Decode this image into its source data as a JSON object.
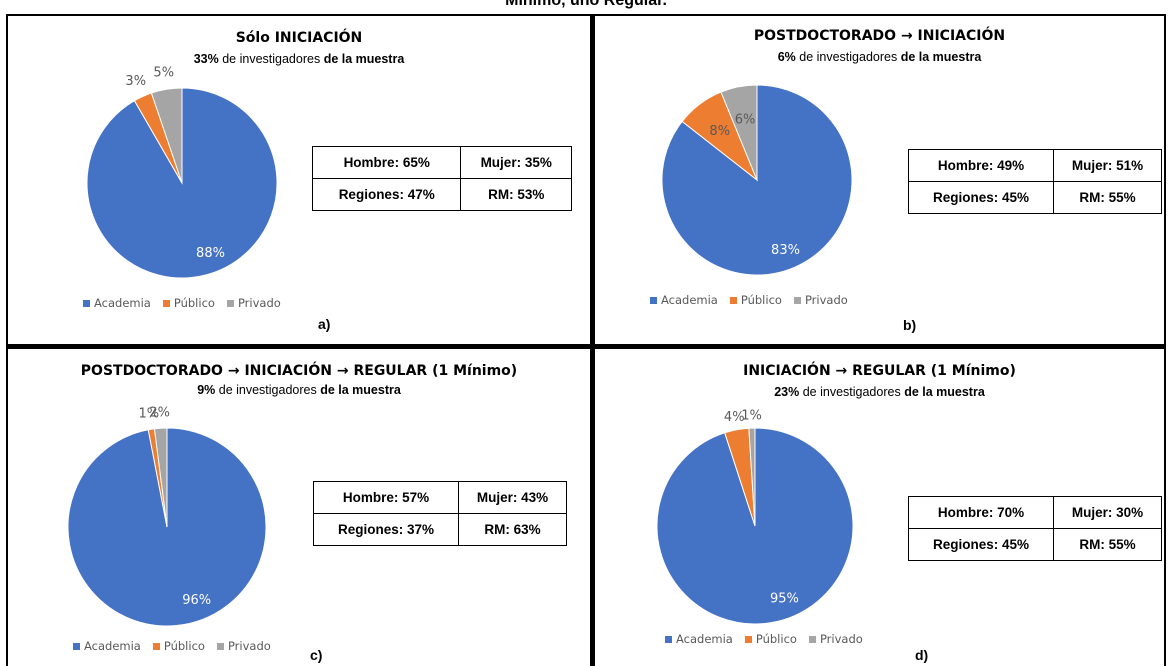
{
  "figure_title": "Mínimo, uno Regular.",
  "legend_labels": [
    "Academia",
    "Público",
    "Privado"
  ],
  "colors": {
    "Academia": "#4472C4",
    "Público": "#ED7D31",
    "Privado": "#A5A5A5"
  },
  "chart_data": [
    {
      "type": "pie",
      "title": "Sólo INICIACIÓN",
      "subtitle_pct": "33%",
      "subtitle_mid": " de investigadores ",
      "subtitle_end": "de la muestra",
      "slices": [
        {
          "name": "Academia",
          "value": 88,
          "label": "88%"
        },
        {
          "name": "Público",
          "value": 3,
          "label": "3%"
        },
        {
          "name": "Privado",
          "value": 5,
          "label": "5%"
        }
      ],
      "legend_position": "bottom",
      "stats": {
        "hombre": "Hombre: 65%",
        "mujer": "Mujer: 35%",
        "regiones": "Regiones: 47%",
        "rm": "RM: 53%"
      },
      "letter": "a)"
    },
    {
      "type": "pie",
      "title": "POSTDOCTORADO → INICIACIÓN",
      "subtitle_pct": "6%",
      "subtitle_mid": " de investigadores ",
      "subtitle_end": "de la muestra",
      "slices": [
        {
          "name": "Academia",
          "value": 83,
          "label": "83%"
        },
        {
          "name": "Público",
          "value": 8,
          "label": "8%"
        },
        {
          "name": "Privado",
          "value": 6,
          "label": "6%"
        }
      ],
      "legend_position": "bottom",
      "stats": {
        "hombre": "Hombre: 49%",
        "mujer": "Mujer: 51%",
        "regiones": "Regiones: 45%",
        "rm": "RM: 55%"
      },
      "letter": "b)"
    },
    {
      "type": "pie",
      "title": "POSTDOCTORADO → INICIACIÓN → REGULAR (1 Mínimo)",
      "subtitle_pct": "9%",
      "subtitle_mid": " de investigadores ",
      "subtitle_end": "de la muestra",
      "slices": [
        {
          "name": "Academia",
          "value": 96,
          "label": "96%"
        },
        {
          "name": "Público",
          "value": 1,
          "label": "1%"
        },
        {
          "name": "Privado",
          "value": 2,
          "label": "2%"
        }
      ],
      "legend_position": "bottom",
      "stats": {
        "hombre": "Hombre: 57%",
        "mujer": "Mujer: 43%",
        "regiones": "Regiones: 37%",
        "rm": "RM: 63%"
      },
      "letter": "c)"
    },
    {
      "type": "pie",
      "title": "INICIACIÓN → REGULAR (1 Mínimo)",
      "subtitle_pct": "23%",
      "subtitle_mid": " de investigadores ",
      "subtitle_end": "de la muestra",
      "slices": [
        {
          "name": "Academia",
          "value": 95,
          "label": "95%"
        },
        {
          "name": "Público",
          "value": 4,
          "label": "4%"
        },
        {
          "name": "Privado",
          "value": 1,
          "label": "1%"
        }
      ],
      "legend_position": "bottom",
      "stats": {
        "hombre": "Hombre: 70%",
        "mujer": "Mujer: 30%",
        "regiones": "Regiones: 45%",
        "rm": "RM: 55%"
      },
      "letter": "d)"
    }
  ]
}
